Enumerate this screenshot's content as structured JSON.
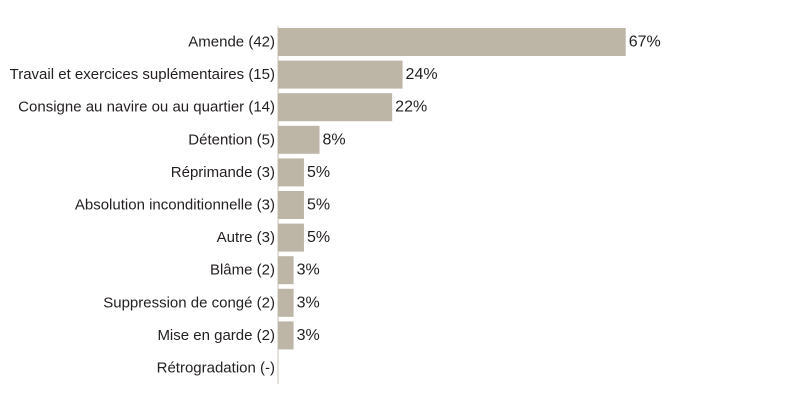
{
  "chart_data": {
    "type": "bar",
    "orientation": "horizontal",
    "categories": [
      "Amende (42)",
      "Travail et exercices suplémentaires (15)",
      "Consigne au navire ou au quartier (14)",
      "Détention (5)",
      "Réprimande (3)",
      "Absolution inconditionnelle (3)",
      "Autre (3)",
      "Blâme (2)",
      "Suppression de congé (2)",
      "Mise en garde (2)",
      "Rétrogradation (-)"
    ],
    "values": [
      67,
      24,
      22,
      8,
      5,
      5,
      5,
      3,
      3,
      3,
      null
    ],
    "value_labels": [
      "67%",
      "24%",
      "22%",
      "8%",
      "5%",
      "5%",
      "5%",
      "3%",
      "3%",
      "3%",
      ""
    ],
    "xlim": [
      0,
      100
    ],
    "grid": false,
    "legend": "none",
    "colors": {
      "bar": "#bdb5a6",
      "axis": "#c9c3b8",
      "text": "#231f20"
    }
  }
}
